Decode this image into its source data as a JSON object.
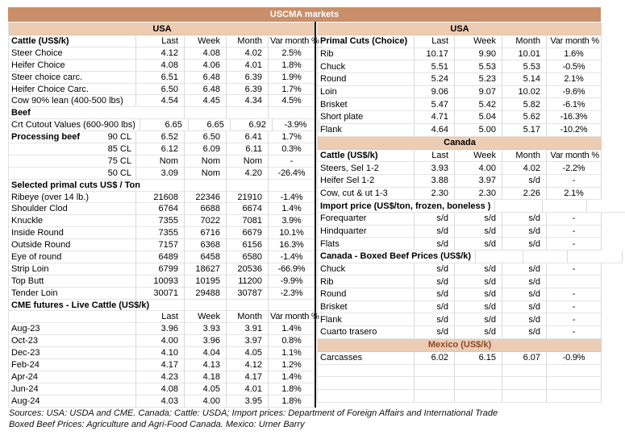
{
  "title": "USCMA markets",
  "colors": {
    "title_bar_bg": "#c98f6a",
    "section_band_bg": "#ecccb3",
    "mexico_band_text": "#8c4a2b",
    "divider": "#151515",
    "grid_line": "#d9d9d9"
  },
  "left": {
    "rows": [
      {
        "kind": "band",
        "label": "USA"
      },
      {
        "kind": "colhead",
        "label": "Cattle (US$/k)",
        "last": "Last",
        "week": "Week",
        "month": "Month",
        "var": "Var month %"
      },
      {
        "kind": "data",
        "label": "Steer Choice",
        "last": "4.12",
        "week": "4.08",
        "month": "4.02",
        "var": "2.5%"
      },
      {
        "kind": "data",
        "label": "Heifer Choice",
        "last": "4.08",
        "week": "4.06",
        "month": "4.01",
        "var": "1.8%"
      },
      {
        "kind": "data",
        "label": "Steer choice carc.",
        "last": "6.51",
        "week": "6.48",
        "month": "6.39",
        "var": "1.9%"
      },
      {
        "kind": "data",
        "label": "Heifer Choice Carc.",
        "last": "6.50",
        "week": "6.48",
        "month": "6.39",
        "var": "1.7%"
      },
      {
        "kind": "data",
        "label": "Cow 90% lean (400-500 lbs)",
        "last": "4.54",
        "week": "4.45",
        "month": "4.34",
        "var": "4.5%"
      },
      {
        "kind": "section",
        "label": "Beef"
      },
      {
        "kind": "data",
        "label": "Crt Cutout Values (600-900 lbs)",
        "last": "6.65",
        "week": "6.65",
        "month": "6.92",
        "var": "-3.9%"
      },
      {
        "kind": "data",
        "label": "Processing beef",
        "bold": true,
        "label2": "90 CL",
        "last": "6.52",
        "week": "6.50",
        "month": "6.41",
        "var": "1.7%"
      },
      {
        "kind": "data",
        "label": "",
        "label2": "85 CL",
        "last": "6.12",
        "week": "6.09",
        "month": "6.11",
        "var": "0.3%"
      },
      {
        "kind": "data",
        "label": "",
        "label2": "75 CL",
        "last": "Nom",
        "week": "Nom",
        "month": "Nom",
        "var": "-"
      },
      {
        "kind": "data",
        "label": "",
        "label2": "50 CL",
        "last": "3.09",
        "week": "Nom",
        "month": "4.20",
        "var": "-26.4%"
      },
      {
        "kind": "section",
        "label": "Selected primal cuts US$ / Ton"
      },
      {
        "kind": "data",
        "label": "Ribeye (over 14 lb.)",
        "last": "21608",
        "week": "22346",
        "month": "21910",
        "var": "-1.4%"
      },
      {
        "kind": "data",
        "label": "Shoulder Clod",
        "last": "6764",
        "week": "6688",
        "month": "6674",
        "var": "1.4%"
      },
      {
        "kind": "data",
        "label": "Knuckle",
        "last": "7355",
        "week": "7022",
        "month": "7081",
        "var": "3.9%"
      },
      {
        "kind": "data",
        "label": "Inside Round",
        "last": "7355",
        "week": "6716",
        "month": "6679",
        "var": "10.1%"
      },
      {
        "kind": "data",
        "label": "Outside Round",
        "last": "7157",
        "week": "6368",
        "month": "6156",
        "var": "16.3%"
      },
      {
        "kind": "data",
        "label": "Eye of round",
        "last": "6489",
        "week": "6458",
        "month": "6580",
        "var": "-1.4%"
      },
      {
        "kind": "data",
        "label": "Strip Loin",
        "last": "6799",
        "week": "18627",
        "month": "20536",
        "var": "-66.9%"
      },
      {
        "kind": "data",
        "label": "Top Butt",
        "last": "10093",
        "week": "10195",
        "month": "11200",
        "var": "-9.9%"
      },
      {
        "kind": "data",
        "label": "Tender Loin",
        "last": "30071",
        "week": "29488",
        "month": "30787",
        "var": "-2.3%"
      },
      {
        "kind": "section",
        "label": "CME futures - Live Cattle (US$/k)"
      },
      {
        "kind": "colhead",
        "label": "",
        "last": "Last",
        "week": "Week",
        "month": "Month",
        "var": "Var month %"
      },
      {
        "kind": "data",
        "label": "Aug-23",
        "last": "3.96",
        "week": "3.93",
        "month": "3.91",
        "var": "1.4%"
      },
      {
        "kind": "data",
        "label": "Oct-23",
        "last": "4.00",
        "week": "3.96",
        "month": "3.97",
        "var": "0.8%"
      },
      {
        "kind": "data",
        "label": "Dec-23",
        "last": "4.10",
        "week": "4.04",
        "month": "4.05",
        "var": "1.1%"
      },
      {
        "kind": "data",
        "label": "Feb-24",
        "last": "4.17",
        "week": "4.13",
        "month": "4.12",
        "var": "1.2%"
      },
      {
        "kind": "data",
        "label": "Apr-24",
        "last": "4.23",
        "week": "4.18",
        "month": "4.17",
        "var": "1.4%"
      },
      {
        "kind": "data",
        "label": "Jun-24",
        "last": "4.08",
        "week": "4.05",
        "month": "4.01",
        "var": "1.8%"
      },
      {
        "kind": "data",
        "label": "Aug-24",
        "last": "4.03",
        "week": "4.00",
        "month": "3.95",
        "var": "1.8%"
      }
    ]
  },
  "right": {
    "rows": [
      {
        "kind": "band",
        "label": "USA"
      },
      {
        "kind": "colhead",
        "label": "Primal Cuts (Choice)",
        "last": "Last",
        "week": "Week",
        "month": "Month",
        "var": "Var month %"
      },
      {
        "kind": "data",
        "label": "Rib",
        "last": "10.17",
        "week": "9.90",
        "month": "10.01",
        "var": "1.6%"
      },
      {
        "kind": "data",
        "label": "Chuck",
        "last": "5.51",
        "week": "5.53",
        "month": "5.53",
        "var": "-0.5%"
      },
      {
        "kind": "data",
        "label": "Round",
        "last": "5.24",
        "week": "5.23",
        "month": "5.14",
        "var": "2.1%"
      },
      {
        "kind": "data",
        "label": "Loin",
        "last": "9.06",
        "week": "9.07",
        "month": "10.02",
        "var": "-9.6%"
      },
      {
        "kind": "data",
        "label": "Brisket",
        "last": "5.47",
        "week": "5.42",
        "month": "5.82",
        "var": "-6.1%"
      },
      {
        "kind": "data",
        "label": "Short plate",
        "last": "4.71",
        "week": "5.04",
        "month": "5.62",
        "var": "-16.3%"
      },
      {
        "kind": "data",
        "label": "Flank",
        "last": "4.64",
        "week": "5.00",
        "month": "5.17",
        "var": "-10.2%"
      },
      {
        "kind": "band",
        "label": "Canada"
      },
      {
        "kind": "colhead",
        "label": "Cattle (US$/k)",
        "last": "Last",
        "week": "Week",
        "month": "Month",
        "var": "Var month %"
      },
      {
        "kind": "data",
        "label": "Steers, Sel 1-2",
        "last": "3.93",
        "week": "4.00",
        "month": "4.02",
        "var": "-2.2%"
      },
      {
        "kind": "data",
        "label": "Heifer Sel 1-2",
        "last": "3.88",
        "week": "3.97",
        "month": "s/d",
        "var": "-"
      },
      {
        "kind": "data",
        "label": "Cow, cut & ut 1-3",
        "last": "2.30",
        "week": "2.30",
        "month": "2.26",
        "var": "2.1%"
      },
      {
        "kind": "section",
        "label": "Import price (US$/ton, frozen, boneless )"
      },
      {
        "kind": "data",
        "label": "Forequarter",
        "last": "s/d",
        "week": "s/d",
        "month": "s/d",
        "var": "-"
      },
      {
        "kind": "data",
        "label": "Hindquarter",
        "last": "s/d",
        "week": "s/d",
        "month": "s/d",
        "var": "-"
      },
      {
        "kind": "data",
        "label": "Flats",
        "last": "s/d",
        "week": "s/d",
        "month": "s/d",
        "var": "-"
      },
      {
        "kind": "section",
        "label": "Canada - Boxed Beef Prices (US$/k)"
      },
      {
        "kind": "data",
        "label": "Chuck",
        "last": "s/d",
        "week": "s/d",
        "month": "s/d",
        "var": "-"
      },
      {
        "kind": "data",
        "label": "Rib",
        "last": "s/d",
        "week": "s/d",
        "month": "s/d",
        "var": ""
      },
      {
        "kind": "data",
        "label": "Round",
        "last": "s/d",
        "week": "s/d",
        "month": "s/d",
        "var": "-"
      },
      {
        "kind": "data",
        "label": "Brisket",
        "last": "s/d",
        "week": "s/d",
        "month": "s/d",
        "var": "-"
      },
      {
        "kind": "data",
        "label": "Flank",
        "last": "s/d",
        "week": "s/d",
        "month": "s/d",
        "var": "-"
      },
      {
        "kind": "data",
        "label": "Cuarto trasero",
        "last": "s/d",
        "week": "s/d",
        "month": "s/d",
        "var": "-"
      },
      {
        "kind": "band",
        "label": "Mexico (US$/k)",
        "accent": true
      },
      {
        "kind": "data",
        "label": "Carcasses",
        "last": "6.02",
        "week": "6.15",
        "month": "6.07",
        "var": "-0.9%"
      },
      {
        "kind": "empty"
      },
      {
        "kind": "empty"
      },
      {
        "kind": "empty"
      }
    ]
  },
  "sources": {
    "line1": "Sources: USA: USDA and CME. Canada: Cattle: USDA; Import prices: Department of Foreign Affairs and International Trade",
    "line2": "Boxed Beef Prices: Agriculture and Agri-Food Canada. Mexico: Urner Barry"
  }
}
